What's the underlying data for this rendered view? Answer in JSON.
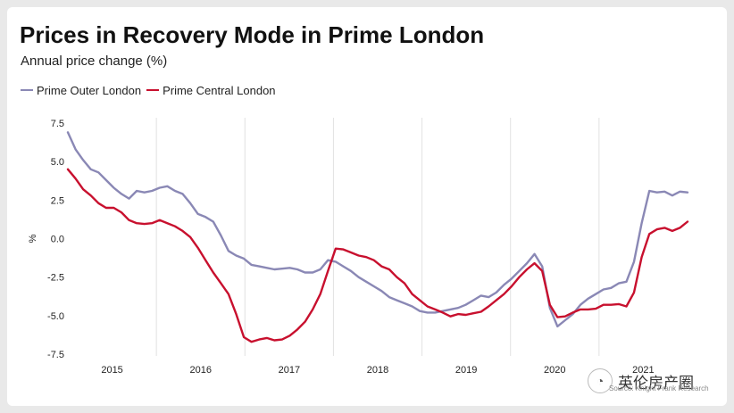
{
  "chart_data": {
    "type": "line",
    "title": "Prices in Recovery Mode in Prime London",
    "subtitle": "Annual price change (%)",
    "xlabel": "",
    "ylabel": "%",
    "ylim": [
      -7.5,
      7.5
    ],
    "yticks": [
      "7.5",
      "5.0",
      "2.5",
      "0.0",
      "-2.5",
      "-5.0",
      "-7.5"
    ],
    "ytick_values": [
      7.5,
      5.0,
      2.5,
      0.0,
      -2.5,
      -5.0,
      -7.5
    ],
    "xticks": [
      "2015",
      "2016",
      "2017",
      "2018",
      "2019",
      "2020",
      "2021"
    ],
    "grid": "vertical",
    "legend_position": "top-left",
    "series": [
      {
        "name": "Prime Outer London",
        "color": "#8a88b5",
        "values": [
          6.9,
          5.8,
          5.1,
          4.5,
          4.3,
          3.8,
          3.3,
          2.9,
          2.6,
          3.1,
          3.0,
          3.1,
          3.3,
          3.4,
          3.1,
          2.9,
          2.3,
          1.6,
          1.4,
          1.1,
          0.2,
          -0.8,
          -1.1,
          -1.3,
          -1.7,
          -1.8,
          -1.9,
          -2.0,
          -1.95,
          -1.9,
          -2.0,
          -2.2,
          -2.2,
          -2.0,
          -1.4,
          -1.5,
          -1.8,
          -2.1,
          -2.5,
          -2.8,
          -3.1,
          -3.4,
          -3.8,
          -4.0,
          -4.2,
          -4.4,
          -4.7,
          -4.8,
          -4.8,
          -4.7,
          -4.6,
          -4.5,
          -4.3,
          -4.0,
          -3.7,
          -3.8,
          -3.5,
          -3.0,
          -2.6,
          -2.1,
          -1.6,
          -1.0,
          -1.8,
          -4.5,
          -5.7,
          -5.3,
          -4.9,
          -4.3,
          -3.9,
          -3.6,
          -3.3,
          -3.2,
          -2.9,
          -2.8,
          -1.5,
          1.0,
          3.1,
          3.0,
          3.05,
          2.8,
          3.05,
          3.0
        ]
      },
      {
        "name": "Prime Central London",
        "color": "#c8102e",
        "values": [
          4.5,
          3.9,
          3.2,
          2.8,
          2.3,
          2.0,
          2.0,
          1.7,
          1.2,
          1.0,
          0.95,
          1.0,
          1.2,
          1.0,
          0.8,
          0.5,
          0.1,
          -0.6,
          -1.4,
          -2.2,
          -2.9,
          -3.6,
          -4.9,
          -6.4,
          -6.7,
          -6.55,
          -6.45,
          -6.6,
          -6.55,
          -6.3,
          -5.9,
          -5.4,
          -4.6,
          -3.6,
          -2.1,
          -0.65,
          -0.7,
          -0.9,
          -1.1,
          -1.2,
          -1.4,
          -1.8,
          -2.0,
          -2.5,
          -2.9,
          -3.6,
          -4.0,
          -4.4,
          -4.6,
          -4.8,
          -5.05,
          -4.9,
          -4.95,
          -4.85,
          -4.75,
          -4.4,
          -4.0,
          -3.6,
          -3.1,
          -2.5,
          -2.0,
          -1.6,
          -2.1,
          -4.3,
          -5.1,
          -5.05,
          -4.8,
          -4.6,
          -4.6,
          -4.55,
          -4.3,
          -4.3,
          -4.25,
          -4.4,
          -3.5,
          -1.2,
          0.3,
          0.6,
          0.7,
          0.5,
          0.7,
          1.1
        ]
      }
    ]
  },
  "watermark": {
    "icon": "wechat-icon",
    "text": "英伦房产圈"
  },
  "source_text": "Source: Knight Frank Research"
}
